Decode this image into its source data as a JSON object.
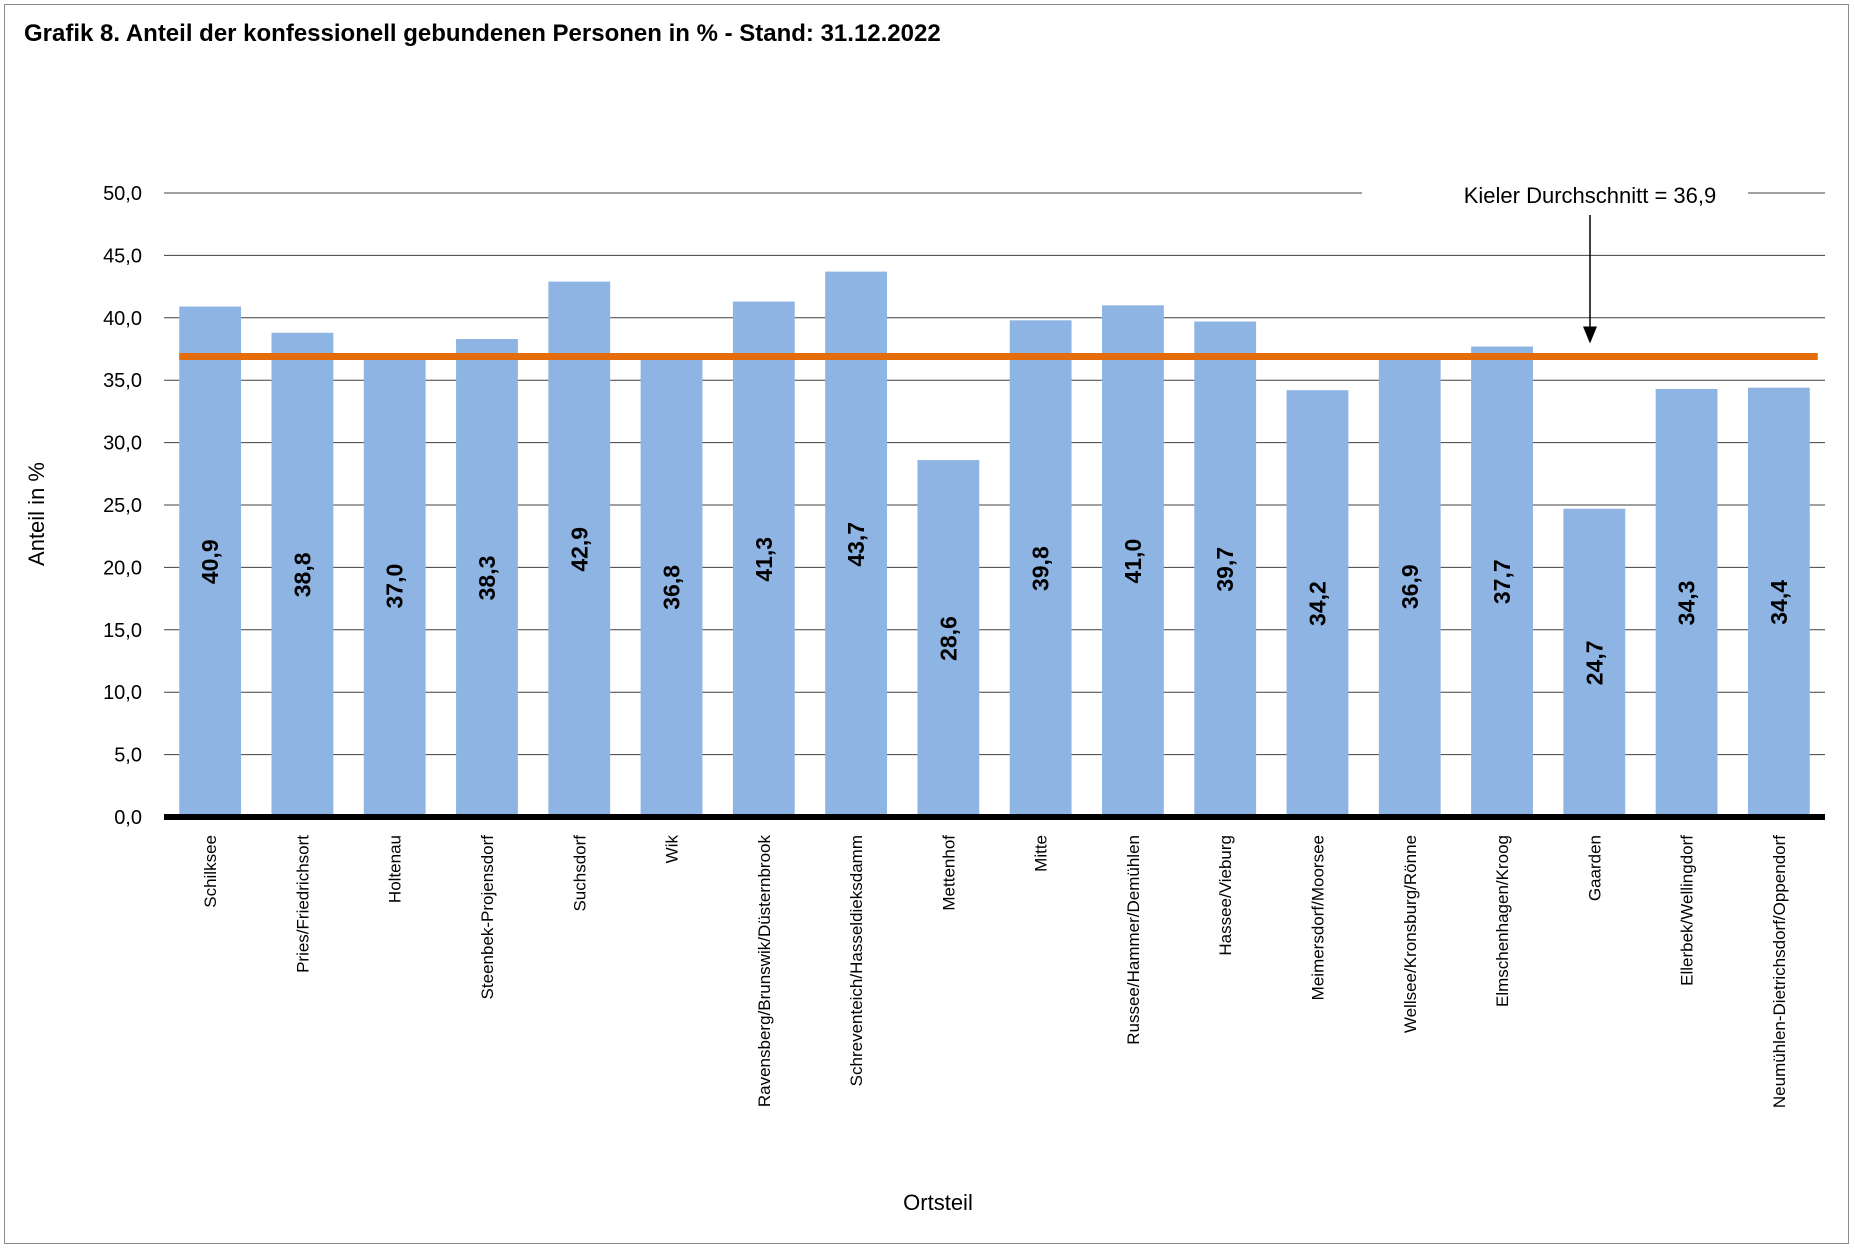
{
  "chart_data": {
    "type": "bar",
    "title": "Grafik 8. Anteil der konfessionell gebundenen Personen in % - Stand: 31.12.2022",
    "xlabel": "Ortsteil",
    "ylabel": "Anteil in %",
    "ylim": [
      0,
      50
    ],
    "yticks": [
      "0,0",
      "5,0",
      "10,0",
      "15,0",
      "20,0",
      "25,0",
      "30,0",
      "35,0",
      "40,0",
      "45,0",
      "50,0"
    ],
    "grid": true,
    "categories": [
      "Schilksee",
      "Pries/Friedrichsort",
      "Holtenau",
      "Steenbek-Projensdorf",
      "Suchsdorf",
      "Wik",
      "Ravensberg/Brunswik/Düsternbrook",
      "Schreventeich/Hasseldieksdamm",
      "Mettenhof",
      "Mitte",
      "Russee/Hammer/Demühlen",
      "Hassee/Vieburg",
      "Meimersdorf/Moorsee",
      "Wellsee/Kronsburg/Rönne",
      "Elmschenhagen/Kroog",
      "Gaarden",
      "Ellerbek/Wellingdorf",
      "Neumühlen-Dietrichsdorf/Oppendorf"
    ],
    "values": [
      40.9,
      38.8,
      37.0,
      38.3,
      42.9,
      36.8,
      41.3,
      43.7,
      28.6,
      39.8,
      41.0,
      39.7,
      34.2,
      36.9,
      37.7,
      24.7,
      34.3,
      34.4
    ],
    "value_labels": [
      "40,9",
      "38,8",
      "37,0",
      "38,3",
      "42,9",
      "36,8",
      "41,3",
      "43,7",
      "28,6",
      "39,8",
      "41,0",
      "39,7",
      "34,2",
      "36,9",
      "37,7",
      "24,7",
      "34,3",
      "34,4"
    ],
    "reference_line": {
      "value": 36.9,
      "label": "Kieler Durchschnitt = 36,9"
    },
    "colors": {
      "bar": "#8EB4E3",
      "reference_line": "#E46C0A",
      "grid": "#404040",
      "axis": "#000000"
    }
  }
}
